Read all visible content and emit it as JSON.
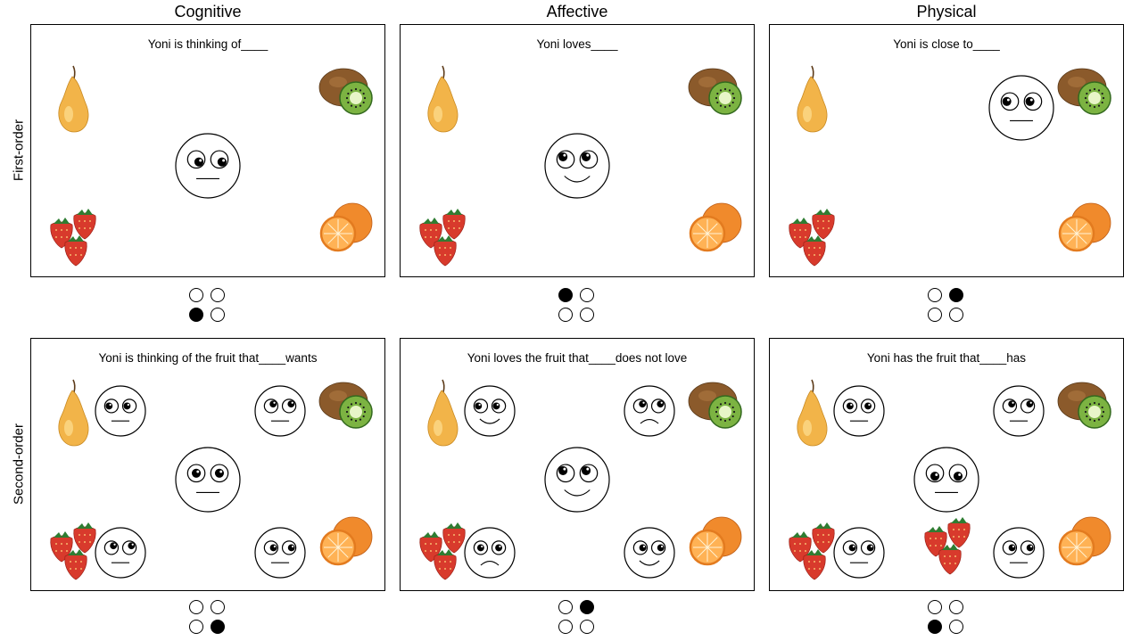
{
  "columns": [
    "Cognitive",
    "Affective",
    "Physical"
  ],
  "rows": [
    "First-order",
    "Second-order"
  ],
  "panels": [
    {
      "prompt": "Yoni is thinking of____",
      "center_face": {
        "eyes": "down-right",
        "mouth": "neutral"
      },
      "corner_faces": [],
      "answer": 2
    },
    {
      "prompt": "Yoni loves____",
      "center_face": {
        "eyes": "up-left",
        "mouth": "smile"
      },
      "corner_faces": [],
      "answer": 0
    },
    {
      "prompt": "Yoni is close to____",
      "center_face": {
        "eyes": "left",
        "mouth": "neutral"
      },
      "corner_faces": [],
      "answer": 1
    },
    {
      "prompt": "Yoni is thinking of the fruit that____wants",
      "center_face": {
        "eyes": "center",
        "mouth": "neutral"
      },
      "corner_faces": [
        {
          "pos": "tl",
          "eyes": "left",
          "mouth": "neutral"
        },
        {
          "pos": "tr",
          "eyes": "up-right",
          "mouth": "neutral"
        },
        {
          "pos": "bl",
          "eyes": "up-right",
          "mouth": "neutral"
        },
        {
          "pos": "br",
          "eyes": "right",
          "mouth": "neutral"
        }
      ],
      "answer": 3
    },
    {
      "prompt": "Yoni loves the fruit that____does not love",
      "center_face": {
        "eyes": "up-left",
        "mouth": "smile"
      },
      "corner_faces": [
        {
          "pos": "tl",
          "eyes": "left",
          "mouth": "smile"
        },
        {
          "pos": "tr",
          "eyes": "up-right",
          "mouth": "frown"
        },
        {
          "pos": "bl",
          "eyes": "center",
          "mouth": "frown"
        },
        {
          "pos": "br",
          "eyes": "right",
          "mouth": "smile"
        }
      ],
      "answer": 1
    },
    {
      "prompt": "Yoni has the fruit that____has",
      "center_face": {
        "eyes": "down",
        "mouth": "neutral"
      },
      "corner_faces": [
        {
          "pos": "tl",
          "eyes": "center",
          "mouth": "neutral"
        },
        {
          "pos": "tr",
          "eyes": "up-right",
          "mouth": "neutral"
        },
        {
          "pos": "bl",
          "eyes": "right",
          "mouth": "neutral"
        },
        {
          "pos": "br",
          "eyes": "right",
          "mouth": "neutral"
        }
      ],
      "strawberry_under_center": true,
      "answer": 2
    }
  ],
  "fruits": [
    "pear",
    "kiwi",
    "strawberry",
    "orange"
  ],
  "colors": {
    "pear": "#f2b449",
    "pear_light": "#fbd98a",
    "kiwi_skin": "#8b5a2b",
    "kiwi_flesh": "#7cb342",
    "kiwi_core": "#e8f5c8",
    "strawberry": "#d83a2c",
    "strawberry_leaf": "#2e7d32",
    "orange": "#f08a2c",
    "orange_flesh": "#ffb255",
    "selected": "#000000",
    "unselected": "#ffffff"
  }
}
